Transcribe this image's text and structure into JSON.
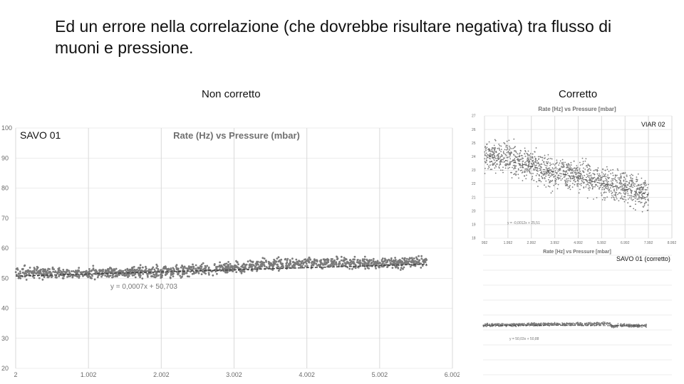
{
  "slide": {
    "title": "Ed un errore nella correlazione (che dovrebbe risultare negativa) tra flusso di muoni e pressione.",
    "label_left": "Non corretto",
    "label_right": "Corretto"
  },
  "colors": {
    "points": "#7a7a7a",
    "trend": "#3a3a3a",
    "grid": "#d9d9d9",
    "text": "#111111"
  },
  "chart_data": [
    {
      "type": "scatter",
      "panel": "main",
      "title": "Rate (Hz) vs Pressure (mbar)",
      "tag": "SAVO 01",
      "equation": "y = 0,0007x + 50,703",
      "xlim": [
        2,
        6002
      ],
      "ylim": [
        20,
        100
      ],
      "x_ticks": [
        "2",
        "1.002",
        "2.002",
        "3.002",
        "4.002",
        "5.002",
        "6.002"
      ],
      "y_ticks": [
        "100",
        "90",
        "80",
        "70",
        "60",
        "50",
        "40",
        "30",
        "20"
      ],
      "trend": {
        "slope": 0.0007,
        "intercept": 50.703
      },
      "grid": true,
      "profile": [
        [
          2,
          51.8
        ],
        [
          800,
          51.6
        ],
        [
          1500,
          52.0
        ],
        [
          2200,
          52.3
        ],
        [
          2800,
          53.2
        ],
        [
          3500,
          54.6
        ],
        [
          4300,
          55.0
        ],
        [
          5000,
          55.0
        ],
        [
          5650,
          55.3
        ]
      ],
      "spread": 0.9,
      "x_max_data": 5650
    },
    {
      "type": "scatter",
      "panel": "viar",
      "title": "Rate [Hz] vs Pressure [mbar]",
      "tag": "VIAR 02",
      "equation": "y = -0,0012x + 25,51",
      "xlim": [
        992,
        8992
      ],
      "ylim": [
        18,
        27
      ],
      "x_ticks": [
        "992",
        "1.992",
        "2.992",
        "3.992",
        "4.992",
        "5.992",
        "6.992",
        "7.992",
        "8.992"
      ],
      "y_ticks": [
        "27",
        "26",
        "25",
        "24",
        "23",
        "22",
        "21",
        "20",
        "19",
        "18"
      ],
      "grid": true,
      "profile": [
        [
          992,
          24.1
        ],
        [
          2000,
          24.0
        ],
        [
          3000,
          23.4
        ],
        [
          4000,
          22.8
        ],
        [
          5000,
          22.6
        ],
        [
          6000,
          22.2
        ],
        [
          7000,
          21.7
        ],
        [
          8000,
          21.2
        ]
      ],
      "spread": 0.55,
      "x_max_data": 8000
    },
    {
      "type": "scatter",
      "panel": "savo_corr",
      "title": "Rate [Hz] vs Pressure [mbar]",
      "tag": "SAVO 01 (corretto)",
      "equation": "y = 50,03x + 50,88",
      "xlim": [
        0,
        9000
      ],
      "ylim": [
        20,
        100
      ],
      "grid": true,
      "profile": [
        [
          300,
          53.2
        ],
        [
          2000,
          53.6
        ],
        [
          3500,
          54.0
        ],
        [
          5000,
          53.9
        ],
        [
          6000,
          54.2
        ],
        [
          6200,
          52.0
        ],
        [
          6400,
          53.0
        ],
        [
          7800,
          52.8
        ]
      ],
      "spread": 0.5,
      "x_max_data": 7800
    }
  ]
}
